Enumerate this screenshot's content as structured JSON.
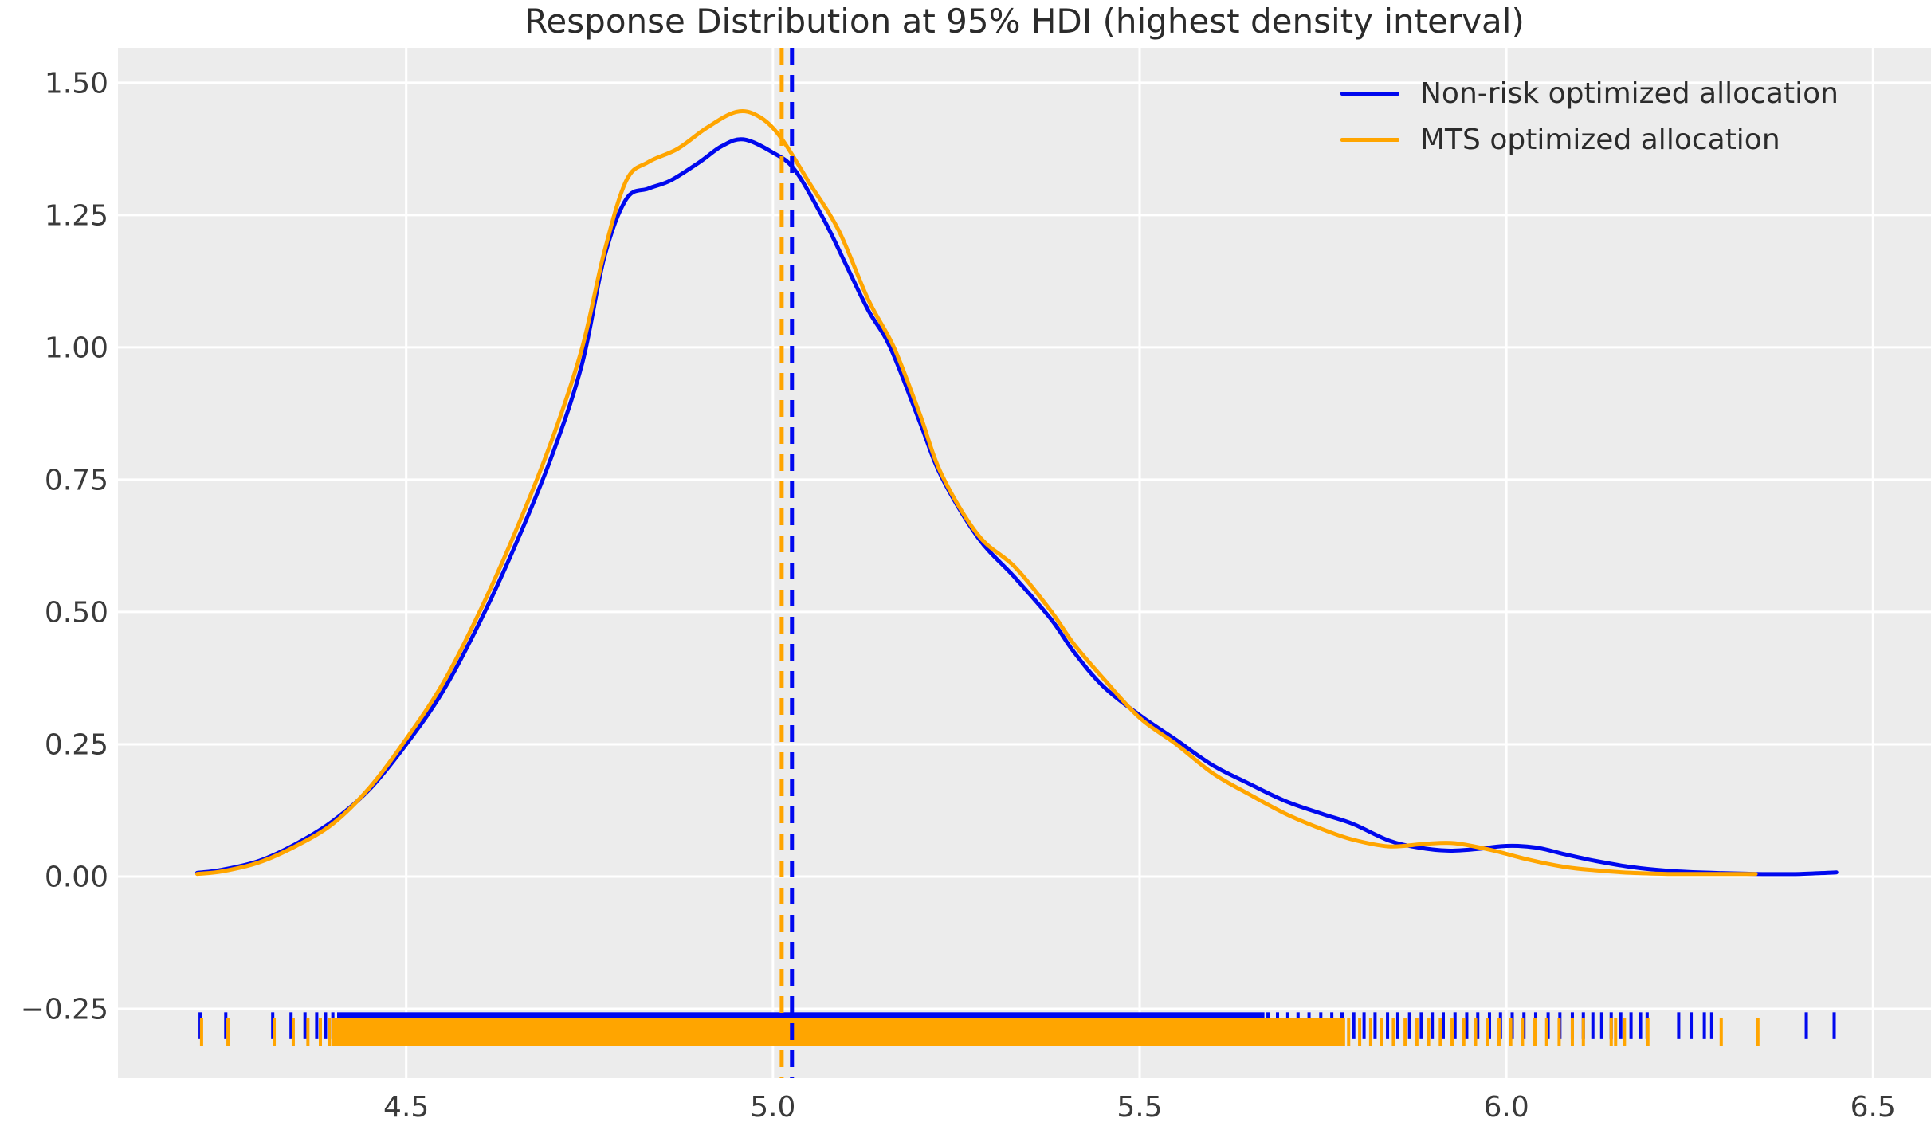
{
  "title": "Response Distribution at 95% HDI (highest density interval)",
  "legend": {
    "items": [
      {
        "label": "Non-risk optimized allocation",
        "color": "#0008ee"
      },
      {
        "label": "MTS optimized allocation",
        "color": "#ffa500"
      }
    ]
  },
  "axes": {
    "x_tick_labels": [
      "4.5",
      "5.0",
      "5.5",
      "6.0",
      "6.5"
    ],
    "x_tick_values": [
      4.5,
      5.0,
      5.5,
      6.0,
      6.5
    ],
    "y_tick_labels": [
      "1.50",
      "1.25",
      "1.00",
      "0.75",
      "0.50",
      "0.25",
      "0.00",
      "−0.25"
    ],
    "y_tick_values": [
      1.5,
      1.25,
      1.0,
      0.75,
      0.5,
      0.25,
      0.0,
      -0.25
    ]
  },
  "colors": {
    "plot_background": "#ececec",
    "gridline": "#ffffff",
    "text": "#2b2b2b",
    "tick_text": "#3a3a3a"
  },
  "chart_data": {
    "type": "line",
    "subtype": "kde-with-rug",
    "title": "Response Distribution at 95% HDI (highest density interval)",
    "xlabel": "",
    "ylabel": "",
    "xlim": [
      4.107,
      6.579
    ],
    "ylim": [
      -0.381,
      1.566
    ],
    "grid": true,
    "legend_position": "upper right",
    "series": [
      {
        "name": "Non-risk optimized allocation",
        "color": "#0008ee",
        "x": [
          4.215,
          4.25,
          4.3,
          4.35,
          4.4,
          4.45,
          4.5,
          4.55,
          4.6,
          4.65,
          4.7,
          4.74,
          4.77,
          4.8,
          4.83,
          4.86,
          4.9,
          4.93,
          4.96,
          5.0,
          5.03,
          5.07,
          5.1,
          5.13,
          5.16,
          5.2,
          5.23,
          5.28,
          5.33,
          5.38,
          5.41,
          5.45,
          5.5,
          5.55,
          5.6,
          5.65,
          5.7,
          5.75,
          5.79,
          5.84,
          5.88,
          5.92,
          5.96,
          6.0,
          6.04,
          6.08,
          6.12,
          6.17,
          6.22,
          6.28,
          6.34,
          6.4,
          6.45
        ],
        "y": [
          0.007,
          0.013,
          0.03,
          0.062,
          0.105,
          0.165,
          0.25,
          0.35,
          0.48,
          0.63,
          0.8,
          0.97,
          1.17,
          1.28,
          1.3,
          1.315,
          1.35,
          1.38,
          1.393,
          1.368,
          1.335,
          1.24,
          1.155,
          1.07,
          1.0,
          0.86,
          0.755,
          0.64,
          0.565,
          0.485,
          0.425,
          0.36,
          0.305,
          0.258,
          0.21,
          0.175,
          0.142,
          0.118,
          0.1,
          0.068,
          0.055,
          0.049,
          0.052,
          0.058,
          0.055,
          0.042,
          0.03,
          0.018,
          0.011,
          0.007,
          0.005,
          0.005,
          0.008
        ]
      },
      {
        "name": "MTS optimized allocation",
        "color": "#ffa500",
        "x": [
          4.215,
          4.25,
          4.3,
          4.35,
          4.4,
          4.45,
          4.5,
          4.55,
          4.6,
          4.65,
          4.7,
          4.74,
          4.77,
          4.8,
          4.83,
          4.87,
          4.91,
          4.95,
          4.98,
          5.01,
          5.05,
          5.09,
          5.13,
          5.165,
          5.2,
          5.23,
          5.28,
          5.33,
          5.38,
          5.41,
          5.45,
          5.5,
          5.55,
          5.6,
          5.65,
          5.7,
          5.75,
          5.79,
          5.84,
          5.89,
          5.93,
          5.98,
          6.03,
          6.08,
          6.12,
          6.17,
          6.22,
          6.28,
          6.34
        ],
        "y": [
          0.005,
          0.01,
          0.027,
          0.058,
          0.1,
          0.168,
          0.26,
          0.365,
          0.5,
          0.655,
          0.83,
          1.0,
          1.18,
          1.315,
          1.35,
          1.375,
          1.415,
          1.445,
          1.437,
          1.398,
          1.31,
          1.22,
          1.09,
          1.0,
          0.875,
          0.76,
          0.645,
          0.585,
          0.5,
          0.44,
          0.375,
          0.3,
          0.25,
          0.195,
          0.155,
          0.118,
          0.089,
          0.07,
          0.057,
          0.062,
          0.063,
          0.05,
          0.032,
          0.018,
          0.012,
          0.007,
          0.005,
          0.005,
          0.005
        ]
      }
    ],
    "mean_lines": [
      {
        "series": "MTS optimized allocation",
        "x": 5.012,
        "color": "#ffa500",
        "style": "dashed"
      },
      {
        "series": "Non-risk optimized allocation",
        "x": 5.026,
        "color": "#0008ee",
        "style": "dashed"
      }
    ],
    "rug": [
      {
        "series": "Non-risk optimized allocation",
        "color": "#0008ee",
        "y_top": -0.2565,
        "y_bottom": -0.307,
        "dense_band": [
          4.408,
          5.668
        ],
        "ticks": [
          4.219,
          4.254,
          4.318,
          4.343,
          4.362,
          4.378,
          4.39,
          4.4,
          5.675,
          5.688,
          5.702,
          5.716,
          5.731,
          5.747,
          5.762,
          5.776,
          5.792,
          5.806,
          5.821,
          5.838,
          5.852,
          5.868,
          5.884,
          5.899,
          5.914,
          5.93,
          5.946,
          5.961,
          5.977,
          5.992,
          6.008,
          6.024,
          6.04,
          6.057,
          6.073,
          6.09,
          6.105,
          6.118,
          6.13,
          6.143,
          6.156,
          6.17,
          6.183,
          6.192,
          6.235,
          6.252,
          6.27,
          6.28,
          6.409,
          6.447
        ]
      },
      {
        "series": "MTS optimized allocation",
        "color": "#ffa500",
        "y_top": -0.268,
        "y_bottom": -0.32,
        "dense_band": [
          4.4,
          5.778
        ],
        "ticks": [
          4.221,
          4.257,
          4.32,
          4.346,
          4.366,
          4.383,
          4.395,
          5.785,
          5.8,
          5.815,
          5.83,
          5.846,
          5.862,
          5.878,
          5.894,
          5.91,
          5.926,
          5.942,
          5.958,
          5.974,
          5.99,
          6.006,
          6.022,
          6.039,
          6.055,
          6.072,
          6.09,
          6.105,
          6.143,
          6.149,
          6.161,
          6.193,
          6.293,
          6.343
        ]
      }
    ]
  }
}
